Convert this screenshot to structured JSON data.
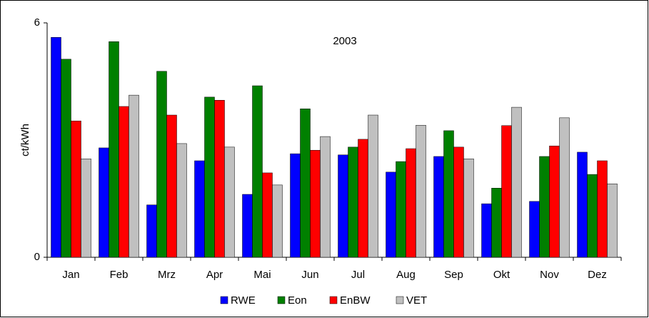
{
  "chart_data": {
    "type": "bar",
    "title": "2003",
    "y_label": "ct/kWh",
    "categories": [
      "Jan",
      "Feb",
      "Mrz",
      "Apr",
      "Mai",
      "Jun",
      "Jul",
      "Aug",
      "Sep",
      "Okt",
      "Nov",
      "Dez"
    ],
    "series": [
      {
        "name": "RWE",
        "color": "#0000ff",
        "values": [
          5.63,
          2.8,
          1.34,
          2.47,
          1.61,
          2.65,
          2.62,
          2.18,
          2.58,
          1.37,
          1.43,
          2.69
        ]
      },
      {
        "name": "Eon",
        "color": "#008000",
        "values": [
          5.07,
          5.52,
          4.76,
          4.1,
          4.39,
          3.8,
          2.82,
          2.45,
          3.24,
          1.77,
          2.58,
          2.12
        ]
      },
      {
        "name": "EnBW",
        "color": "#ff0000",
        "values": [
          3.49,
          3.86,
          3.64,
          4.02,
          2.16,
          2.74,
          3.02,
          2.78,
          2.82,
          3.37,
          2.85,
          2.47
        ]
      },
      {
        "name": "VET",
        "color": "#c0c0c0",
        "values": [
          2.52,
          4.15,
          2.91,
          2.82,
          1.85,
          3.09,
          3.64,
          3.38,
          2.52,
          3.84,
          3.57,
          1.88
        ]
      }
    ],
    "ylim": [
      0,
      6
    ],
    "yticks": [
      0,
      6
    ]
  }
}
